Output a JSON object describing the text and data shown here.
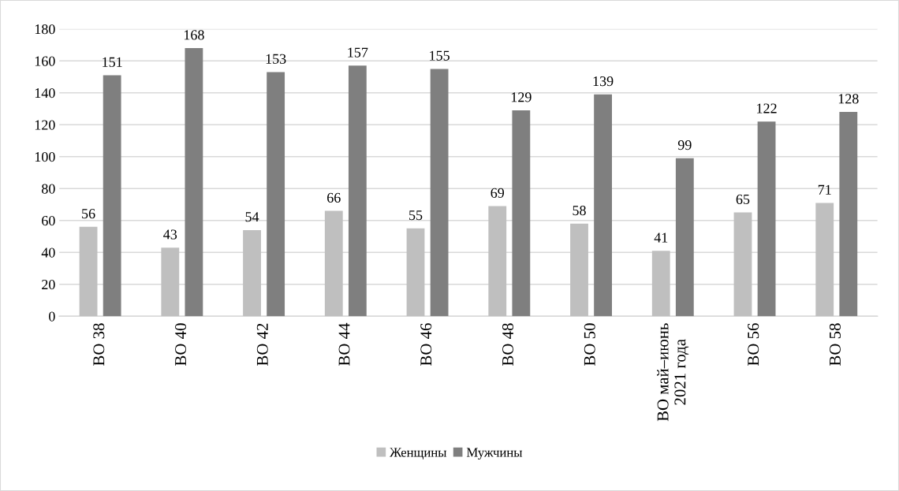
{
  "chart_data": {
    "type": "bar",
    "categories": [
      "ВО 38",
      "ВО 40",
      "ВО 42",
      "ВО 44",
      "ВО 46",
      "ВО 48",
      "ВО 50",
      "ВО май–июнь\n2021 года",
      "ВО 56",
      "ВО 58"
    ],
    "series": [
      {
        "name": "Женщины",
        "color": "#bfbfbf",
        "values": [
          56,
          43,
          54,
          66,
          55,
          69,
          58,
          41,
          65,
          71
        ]
      },
      {
        "name": "Мужчины",
        "color": "#7f7f7f",
        "values": [
          151,
          168,
          153,
          157,
          155,
          129,
          139,
          99,
          122,
          128
        ]
      }
    ],
    "ylim": [
      0,
      180
    ],
    "yticks": [
      0,
      20,
      40,
      60,
      80,
      100,
      120,
      140,
      160,
      180
    ],
    "grid": "y",
    "legend": "bottom",
    "data_labels": true
  }
}
